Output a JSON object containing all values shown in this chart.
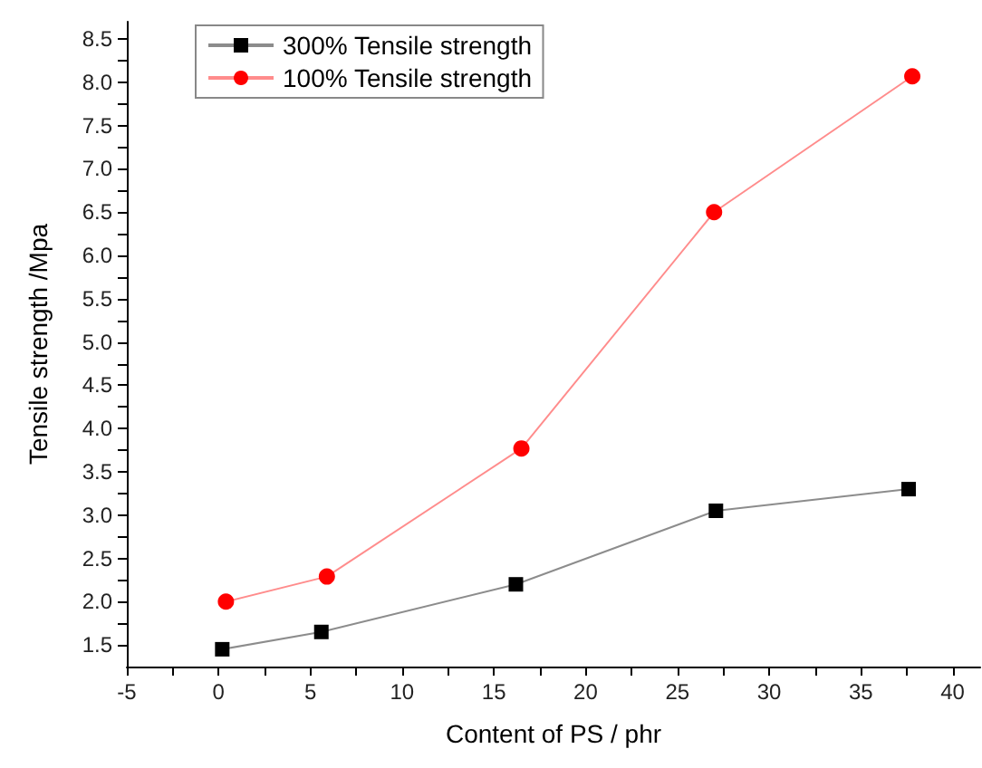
{
  "chart_data": {
    "type": "line",
    "xlabel": "Content of PS / phr",
    "ylabel": "Tensile strength /Mpa",
    "xlim": [
      -5,
      41.5
    ],
    "xticks": [
      -5,
      {
        "value": -2.5,
        "label": null
      },
      0,
      {
        "value": 2.5,
        "label": null
      },
      5,
      {
        "value": 7.5,
        "label": null
      },
      10,
      {
        "value": 12.5,
        "label": null
      },
      15,
      {
        "value": 17.5,
        "label": null
      },
      20,
      {
        "value": 22.5,
        "label": null
      },
      25,
      {
        "value": 27.5,
        "label": null
      },
      30,
      {
        "value": 32.5,
        "label": null
      },
      35,
      {
        "value": 37.5,
        "label": null
      },
      40
    ],
    "ylim": [
      1.25,
      8.7
    ],
    "yticks": [
      {
        "value": 1.5,
        "label": "1.5"
      },
      {
        "value": 1.75,
        "label": null
      },
      {
        "value": 2,
        "label": "2.0"
      },
      {
        "value": 2.25,
        "label": null
      },
      {
        "value": 2.5,
        "label": "2.5"
      },
      {
        "value": 2.75,
        "label": null
      },
      {
        "value": 3,
        "label": "3.0"
      },
      {
        "value": 3.25,
        "label": null
      },
      {
        "value": 3.5,
        "label": "3.5"
      },
      {
        "value": 3.75,
        "label": null
      },
      {
        "value": 4,
        "label": "4.0"
      },
      {
        "value": 4.25,
        "label": null
      },
      {
        "value": 4.5,
        "label": "4.5"
      },
      {
        "value": 4.75,
        "label": null
      },
      {
        "value": 5,
        "label": "5.0"
      },
      {
        "value": 5.25,
        "label": null
      },
      {
        "value": 5.5,
        "label": "5.5"
      },
      {
        "value": 5.75,
        "label": null
      },
      {
        "value": 6,
        "label": "6.0"
      },
      {
        "value": 6.25,
        "label": null
      },
      {
        "value": 6.5,
        "label": "6.5"
      },
      {
        "value": 6.75,
        "label": null
      },
      {
        "value": 7,
        "label": "7.0"
      },
      {
        "value": 7.25,
        "label": null
      },
      {
        "value": 7.5,
        "label": "7.5"
      },
      {
        "value": 7.75,
        "label": null
      },
      {
        "value": 8,
        "label": "8.0"
      },
      {
        "value": 8.25,
        "label": null
      },
      {
        "value": 8.5,
        "label": "8.5"
      }
    ],
    "grid": false,
    "legend": "top left",
    "line_style": "solid",
    "series": [
      {
        "name": "300% Tensile strength",
        "color": "#000000",
        "marker": "square",
        "x": [
          0.2,
          5.6,
          16.2,
          27.1,
          37.6
        ],
        "values": [
          1.45,
          1.65,
          2.2,
          3.05,
          3.3
        ]
      },
      {
        "name": "100% Tensile strength",
        "color": "#ff0000",
        "marker": "circle",
        "x": [
          0.4,
          5.9,
          16.5,
          27,
          37.8
        ],
        "values": [
          2.0,
          2.29,
          3.77,
          6.5,
          8.07
        ]
      }
    ]
  }
}
